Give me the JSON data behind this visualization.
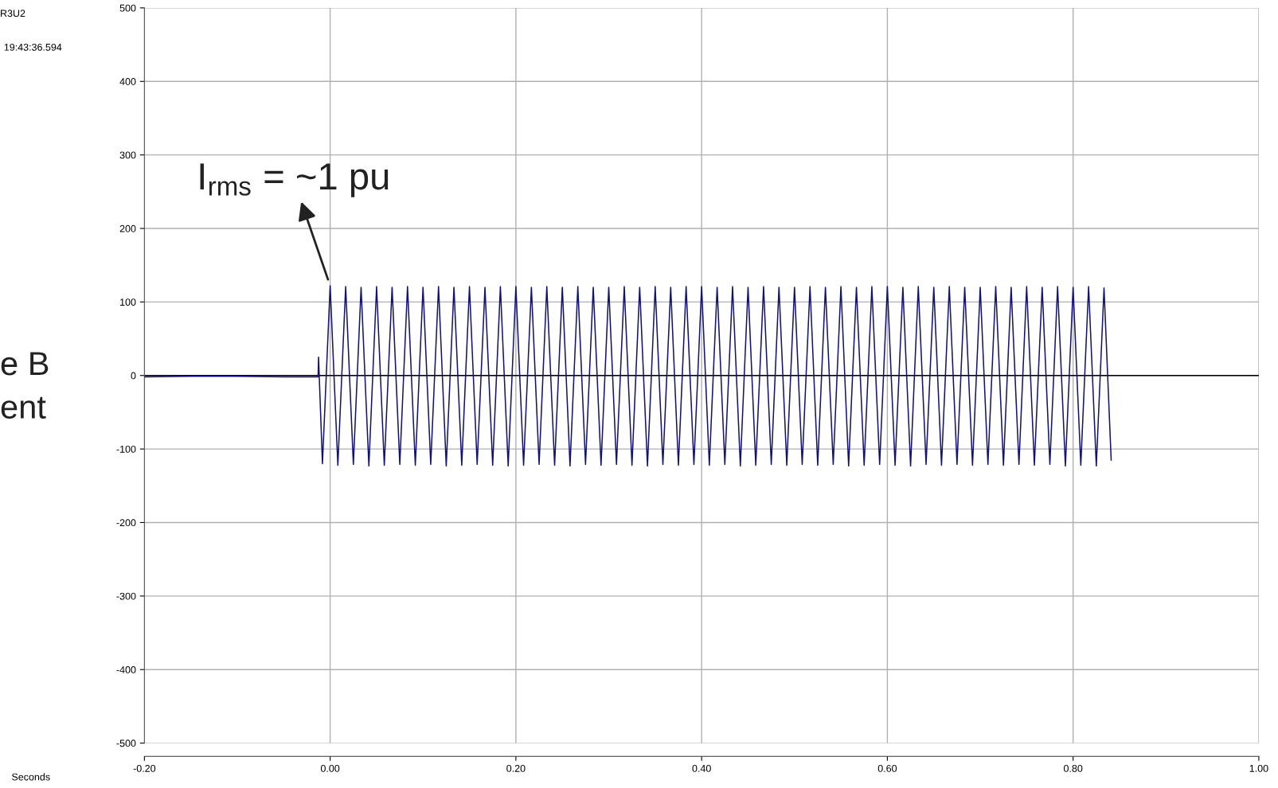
{
  "chart_data": {
    "type": "line",
    "annotations": [
      "R3U2",
      "19:43:36.594",
      "e B",
      "ent",
      "Seconds",
      {
        "text": "I$_{rms}$ = ~1 pu",
        "x": 0.0,
        "y": 122
      }
    ],
    "series": [
      {
        "color": "#10107f",
        "x": [
          -0.2,
          -0.15,
          -0.1,
          -0.05,
          -0.013,
          -0.0125,
          -0.0083,
          0,
          0.0083,
          0.0167,
          0.025,
          0.0333,
          0.0417,
          0.05,
          0.0583,
          0.0667,
          0.075,
          0.0833,
          0.0917,
          0.1,
          0.1083,
          0.1167,
          0.125,
          0.1333,
          0.1417,
          0.15,
          0.1583,
          0.1667,
          0.175,
          0.1833,
          0.1917,
          0.2,
          0.2083,
          0.2167,
          0.225,
          0.2333,
          0.2417,
          0.25,
          0.2583,
          0.2667,
          0.275,
          0.2833,
          0.2917,
          0.3,
          0.3083,
          0.3167,
          0.325,
          0.3333,
          0.3417,
          0.35,
          0.3583,
          0.3667,
          0.375,
          0.3833,
          0.3917,
          0.4,
          0.4083,
          0.4167,
          0.425,
          0.4333,
          0.4417,
          0.45,
          0.4583,
          0.4667,
          0.475,
          0.4833,
          0.4917,
          0.5,
          0.5083,
          0.5167,
          0.525,
          0.5333,
          0.5417,
          0.55,
          0.5583,
          0.5667,
          0.575,
          0.5833,
          0.5917,
          0.6,
          0.6083,
          0.6167,
          0.625,
          0.6333,
          0.6417,
          0.65,
          0.6583,
          0.6667,
          0.675,
          0.6833,
          0.6917,
          0.7,
          0.7083,
          0.7167,
          0.725,
          0.7333,
          0.7417,
          0.75,
          0.7583,
          0.7667,
          0.775,
          0.7833,
          0.7917,
          0.8,
          0.8083,
          0.8167,
          0.825,
          0.8333,
          0.841
        ],
        "values": [
          -2,
          -1,
          -1,
          -2,
          -2,
          25,
          -120,
          122,
          -122,
          121,
          -121,
          120,
          -123,
          121,
          -122,
          120,
          -121,
          121,
          -122,
          120,
          -121,
          121,
          -123,
          120,
          -122,
          121,
          -121,
          120,
          -122,
          121,
          -123,
          121,
          -122,
          120,
          -121,
          121,
          -122,
          120,
          -123,
          121,
          -121,
          120,
          -122,
          120,
          -121,
          121,
          -122,
          120,
          -123,
          121,
          -121,
          120,
          -122,
          121,
          -121,
          121,
          -122,
          120,
          -121,
          121,
          -123,
          120,
          -122,
          121,
          -121,
          120,
          -122,
          120,
          -121,
          121,
          -122,
          120,
          -121,
          121,
          -123,
          120,
          -122,
          121,
          -121,
          121,
          -122,
          120,
          -123,
          121,
          -121,
          120,
          -122,
          121,
          -121,
          120,
          -122,
          120,
          -121,
          121,
          -122,
          120,
          -121,
          121,
          -122,
          120,
          -121,
          121,
          -123,
          120,
          -122,
          121,
          -123,
          119,
          -115
        ]
      }
    ],
    "xlim": [
      -0.2,
      1.0
    ],
    "xticks": [
      {
        "value": -0.2,
        "label": "-0.20"
      },
      {
        "value": 0.0,
        "label": "0.00"
      },
      {
        "value": 0.2,
        "label": "0.20"
      },
      {
        "value": 0.4,
        "label": "0.40"
      },
      {
        "value": 0.6,
        "label": "0.60"
      },
      {
        "value": 0.8,
        "label": "0.80"
      },
      {
        "value": 1.0,
        "label": "1.00"
      }
    ],
    "ylim": [
      -500,
      500
    ],
    "yticks": [
      -500,
      -400,
      -300,
      -200,
      -100,
      0,
      100,
      200,
      300,
      400,
      500
    ],
    "ref_lines": [
      {
        "axis": "y",
        "value": 0,
        "color": "#000000"
      }
    ],
    "grid": true,
    "legend": false,
    "marker": "none",
    "line_style": "solid"
  }
}
